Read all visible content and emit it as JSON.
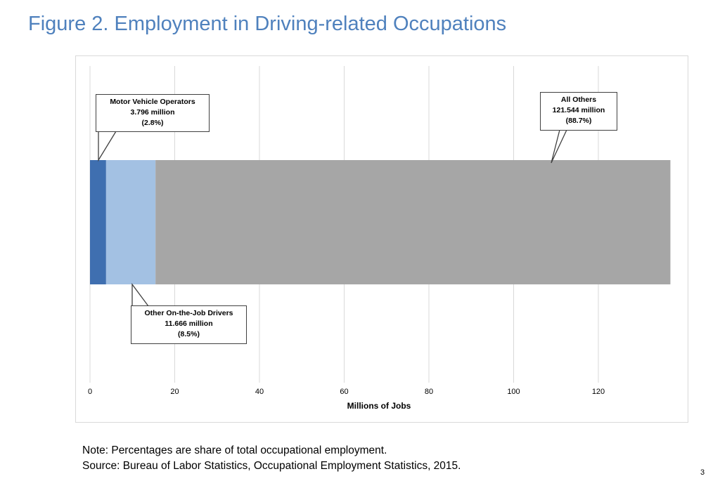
{
  "header": {
    "title": "Figure 2.  Employment in Driving-related Occupations"
  },
  "chart_data": {
    "type": "bar",
    "orientation": "horizontal",
    "stacked": true,
    "xlabel": "Millions of Jobs",
    "ylabel": "",
    "xlim": [
      0,
      136
    ],
    "xticks": [
      0,
      20,
      40,
      60,
      80,
      100,
      120
    ],
    "grid": true,
    "series": [
      {
        "name": "Motor Vehicle Operators",
        "value": 3.796,
        "color": "#3f6fb0"
      },
      {
        "name": "Other On-the-Job Drivers",
        "value": 11.666,
        "color": "#a3c1e3"
      },
      {
        "name": "All Others",
        "value": 121.544,
        "color": "#a6a6a6"
      }
    ]
  },
  "callouts": {
    "motor": {
      "name": "Motor Vehicle Operators",
      "value": "3.796  million",
      "pct": "(2.8%)"
    },
    "other_drivers": {
      "name": "Other On-the-Job Drivers",
      "value": "11.666  million",
      "pct": "(8.5%)"
    },
    "all_others": {
      "name": "All Others",
      "value": "121.544  million",
      "pct": "(88.7%)"
    }
  },
  "footer": {
    "note": "Note: Percentages are share of total occupational employment.",
    "source": "Source:   Bureau of Labor Statistics, Occupational Employment Statistics, 2015.",
    "page_number": "3"
  }
}
